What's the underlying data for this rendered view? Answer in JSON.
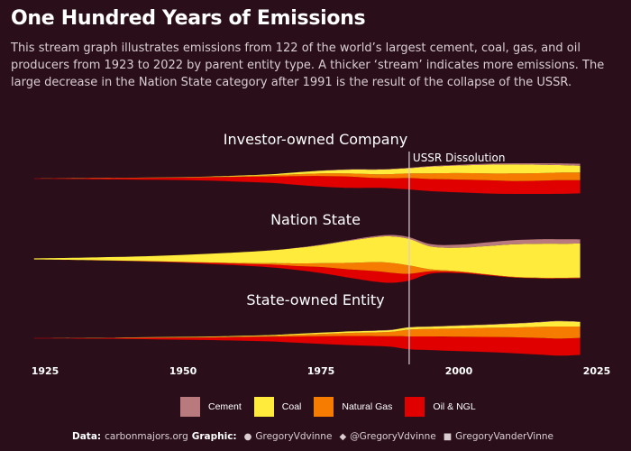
{
  "header": {
    "title": "One Hundred Years of Emissions",
    "subtitle": "This stream graph illustrates emissions from 122 of the world’s largest cement, coal, gas, and oil producers from 1923 to 2022 by parent entity type. A thicker ‘stream’ indicates more emissions. The large decrease in the Nation State category after 1991 is the result of the collapse of the USSR."
  },
  "colors": {
    "background": "#2a0f1a",
    "Cement": "#b97a7e",
    "Coal": "#ffeb3b",
    "Natural Gas": "#f57c00",
    "Oil & NGL": "#e00000",
    "annotation_line": "#d9cdd2"
  },
  "chart_data": {
    "type": "area",
    "layout": "streamgraph",
    "categories": [
      "Cement",
      "Coal",
      "Natural Gas",
      "Oil & NGL"
    ],
    "x_ticks": [
      1925,
      1950,
      1975,
      2000,
      2025
    ],
    "x_tick_labels": [
      "1925",
      "1950",
      "1975",
      "2000",
      "2025"
    ],
    "xlim": [
      1925,
      2025
    ],
    "grid": false,
    "legend_position": "bottom",
    "annotation": {
      "x": 1991,
      "label": "USSR Dissolution"
    },
    "x": [
      1923,
      1935,
      1945,
      1955,
      1965,
      1970,
      1975,
      1980,
      1985,
      1988,
      1991,
      1995,
      2000,
      2005,
      2010,
      2015,
      2018,
      2022
    ],
    "panels": [
      {
        "title": "Investor-owned Company",
        "series": [
          {
            "name": "Cement",
            "values": [
              0,
              0,
              0,
              0,
              0,
              0,
              0.05,
              0.1,
              0.1,
              0.1,
              0.1,
              0.15,
              0.2,
              0.25,
              0.3,
              0.4,
              0.45,
              0.5
            ]
          },
          {
            "name": "Coal",
            "values": [
              0,
              0.05,
              0.05,
              0.1,
              0.25,
              0.45,
              0.7,
              1.0,
              1.2,
              1.3,
              1.4,
              1.8,
              2.0,
              2.3,
              2.4,
              2.2,
              2.0,
              1.8
            ]
          },
          {
            "name": "Natural Gas",
            "values": [
              0,
              0,
              0.05,
              0.1,
              0.3,
              0.5,
              0.7,
              0.8,
              1.0,
              1.1,
              1.2,
              1.5,
              1.7,
              1.8,
              2.0,
              2.0,
              2.0,
              2.0
            ]
          },
          {
            "name": "Oil & NGL",
            "values": [
              0.1,
              0.3,
              0.5,
              0.9,
              1.6,
              2.2,
              2.8,
              3.0,
              2.6,
              2.7,
              3.0,
              3.2,
              3.4,
              3.5,
              3.4,
              3.5,
              3.6,
              3.5
            ]
          }
        ]
      },
      {
        "title": "Nation State",
        "series": [
          {
            "name": "Cement",
            "values": [
              0,
              0,
              0,
              0,
              0,
              0.05,
              0.1,
              0.2,
              0.3,
              0.4,
              0.45,
              0.6,
              0.8,
              1.0,
              1.1,
              1.2,
              1.2,
              1.1
            ]
          },
          {
            "name": "Coal",
            "values": [
              0.3,
              0.8,
              1.4,
              2.3,
              3.3,
              4.0,
              4.8,
              5.8,
              6.6,
              7.0,
              7.0,
              6.0,
              6.2,
              7.4,
              8.6,
              9.0,
              9.0,
              9.0
            ]
          },
          {
            "name": "Natural Gas",
            "values": [
              0,
              0,
              0.05,
              0.1,
              0.3,
              0.6,
              1.0,
              1.7,
              2.4,
              2.6,
              2.2,
              0.5,
              0.2,
              0.1,
              0.1,
              0.1,
              0.1,
              0.1
            ]
          },
          {
            "name": "Oil & NGL",
            "values": [
              0,
              0.05,
              0.1,
              0.3,
              0.7,
              1.0,
              1.6,
              2.2,
              2.8,
              2.6,
              1.8,
              0.6,
              0.3,
              0.2,
              0.1,
              0.1,
              0.1,
              0.1
            ]
          }
        ]
      },
      {
        "title": "State-owned Entity",
        "series": [
          {
            "name": "Cement",
            "values": [
              0,
              0,
              0,
              0,
              0,
              0,
              0,
              0,
              0.05,
              0.05,
              0.05,
              0.05,
              0.1,
              0.1,
              0.1,
              0.1,
              0.1,
              0.1
            ]
          },
          {
            "name": "Coal",
            "values": [
              0,
              0.05,
              0.1,
              0.15,
              0.2,
              0.3,
              0.35,
              0.4,
              0.45,
              0.5,
              0.6,
              0.6,
              0.7,
              0.8,
              1.0,
              1.2,
              1.4,
              1.2
            ]
          },
          {
            "name": "Natural Gas",
            "values": [
              0,
              0,
              0.05,
              0.1,
              0.2,
              0.4,
              0.6,
              0.8,
              1.0,
              1.2,
              1.8,
              2.0,
              2.2,
              2.4,
              2.6,
              3.0,
              3.2,
              3.0
            ]
          },
          {
            "name": "Oil & NGL",
            "values": [
              0.1,
              0.2,
              0.4,
              0.7,
              1.2,
              1.6,
              2.0,
              2.4,
              2.6,
              2.8,
              3.4,
              3.6,
              3.8,
              4.0,
              4.2,
              4.4,
              4.5,
              4.5
            ]
          }
        ]
      }
    ]
  },
  "legend": {
    "items": [
      {
        "label": "Cement"
      },
      {
        "label": "Coal"
      },
      {
        "label": "Natural Gas"
      },
      {
        "label": "Oil & NGL"
      }
    ]
  },
  "footer": {
    "data_prefix": "Data:",
    "data_source": "carbonmajors.org",
    "graphic_prefix": "Graphic:",
    "github_icon": "github-icon",
    "github_handle": "GregoryVdvinne",
    "twitter_icon": "twitter-icon",
    "twitter_handle": "@GregoryVdvinne",
    "linkedin_icon": "linkedin-icon",
    "linkedin_handle": "GregoryVanderVinne"
  }
}
